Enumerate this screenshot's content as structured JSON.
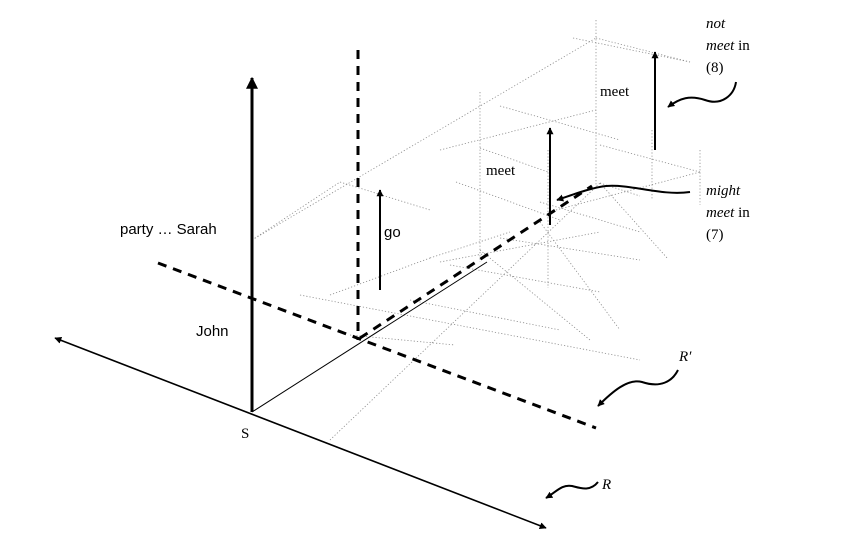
{
  "labels": {
    "party_sarah": "party … Sarah",
    "john": "John",
    "s": "S",
    "go": "go",
    "meet_middle": "meet",
    "meet_top": "meet",
    "r": "R",
    "r_prime": "R′"
  },
  "annotations": {
    "not_meet": {
      "line1": "not",
      "line2_italic": "meet",
      "line2_plain": " in",
      "line3": "(8)"
    },
    "might_meet": {
      "line1": "might",
      "line2_italic": "meet",
      "line2_plain": " in",
      "line3": "(7)"
    }
  }
}
